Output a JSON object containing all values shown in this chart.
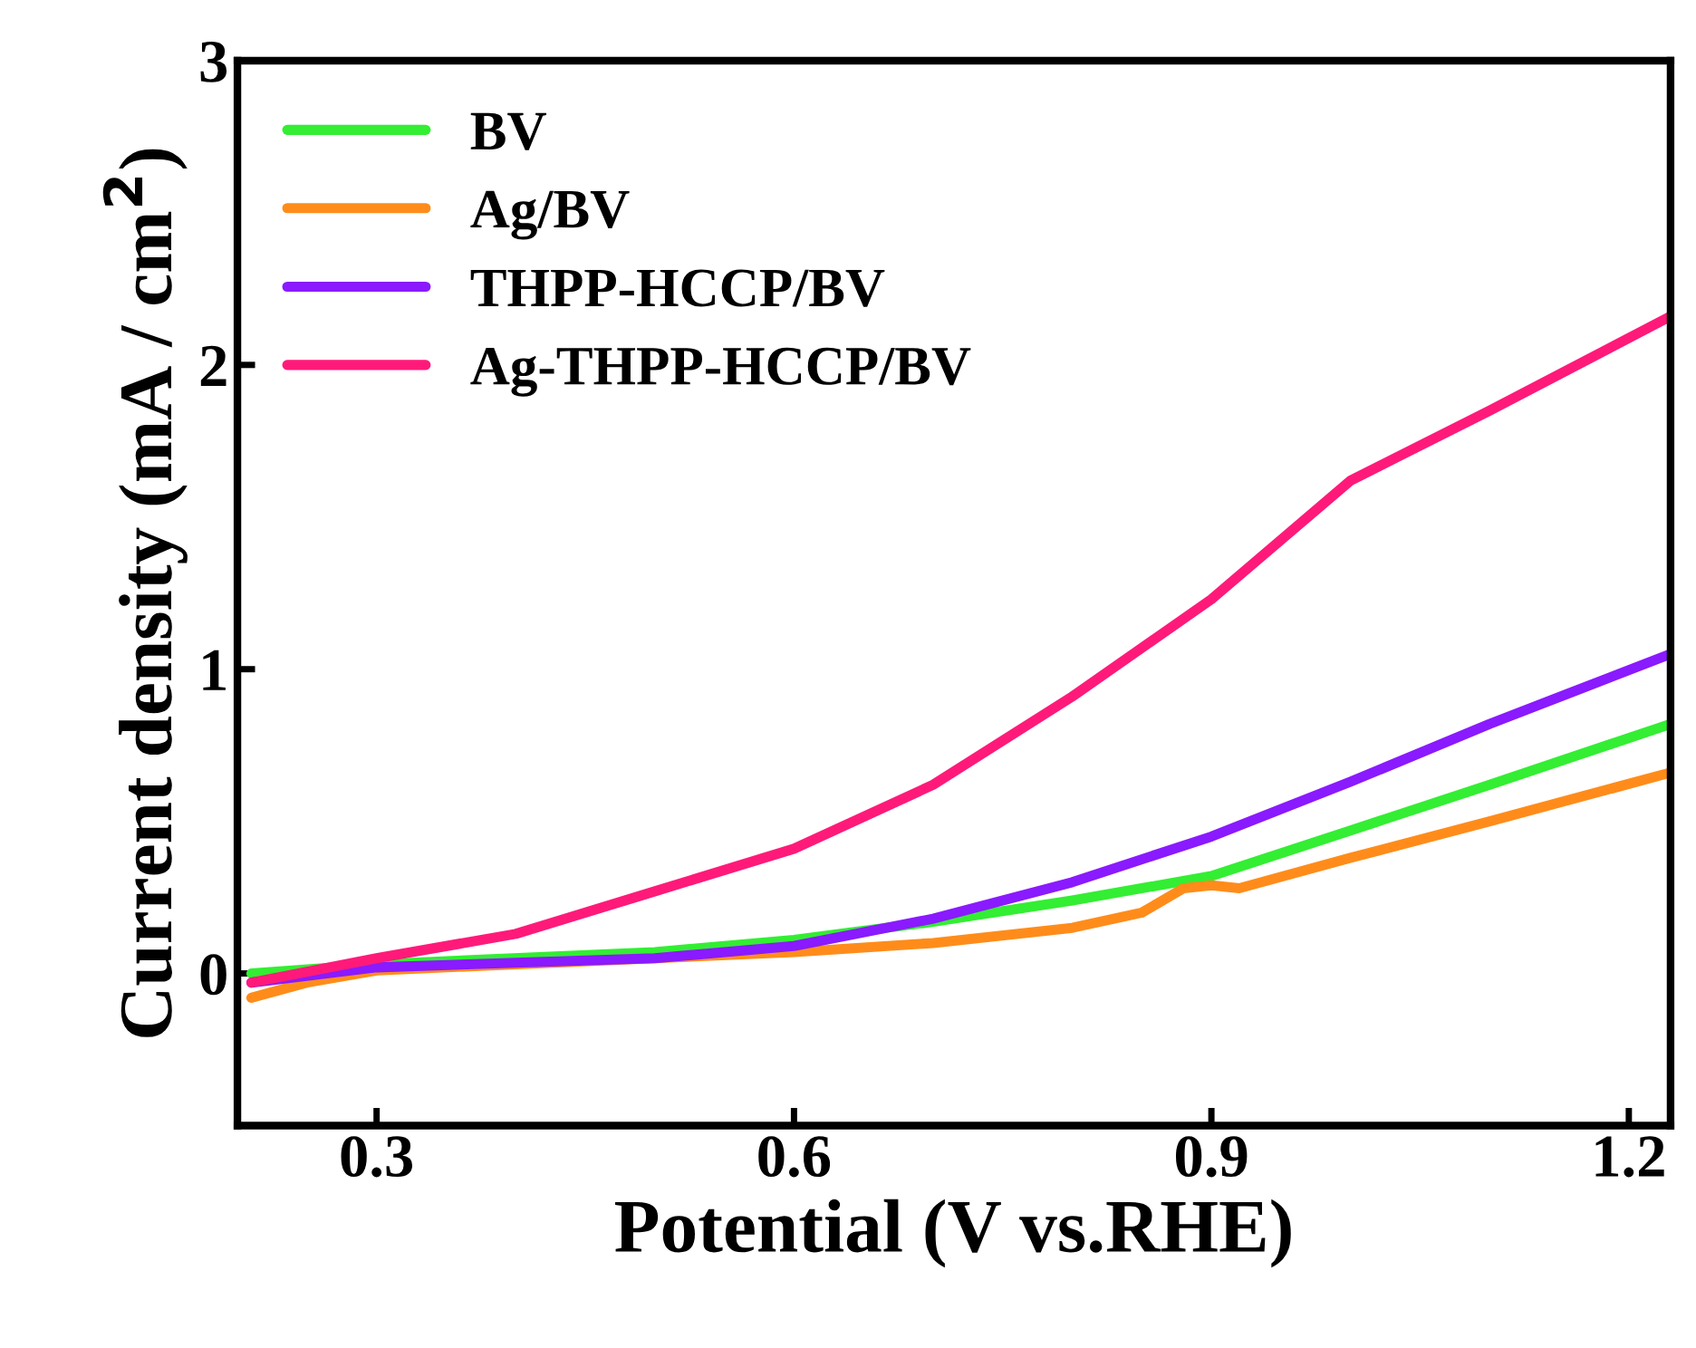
{
  "chart_data": {
    "type": "line",
    "xlabel": "Potential (V vs.RHE)",
    "ylabel": "Current density (mA / cm$^{2}$)",
    "xlim": [
      0.2,
      1.23
    ],
    "xticks": [
      0.3,
      0.6,
      0.9,
      1.2
    ],
    "ylim": [
      -0.5,
      3
    ],
    "yticks": [
      0,
      1,
      2,
      3
    ],
    "grid": false,
    "legend": "top left",
    "marker": "none",
    "line_style": "solid",
    "series": [
      {
        "name": "BV",
        "color": "#33ee33",
        "x": [
          0.21,
          0.3,
          0.5,
          0.6,
          0.7,
          0.8,
          0.9,
          1.0,
          1.1,
          1.23
        ],
        "values": [
          0.0,
          0.03,
          0.07,
          0.11,
          0.17,
          0.24,
          0.32,
          0.47,
          0.62,
          0.82
        ]
      },
      {
        "name": "Ag/BV",
        "color": "#ff8c1a",
        "x": [
          0.21,
          0.25,
          0.3,
          0.5,
          0.6,
          0.7,
          0.8,
          0.85,
          0.88,
          0.9,
          0.92,
          1.0,
          1.1,
          1.23
        ],
        "values": [
          -0.08,
          -0.03,
          0.01,
          0.05,
          0.07,
          0.1,
          0.15,
          0.2,
          0.28,
          0.29,
          0.28,
          0.38,
          0.5,
          0.66
        ]
      },
      {
        "name": "THPP-HCCP/BV",
        "color": "#8a1aff",
        "x": [
          0.21,
          0.3,
          0.5,
          0.6,
          0.7,
          0.8,
          0.9,
          1.0,
          1.1,
          1.23
        ],
        "values": [
          -0.03,
          0.02,
          0.05,
          0.09,
          0.18,
          0.3,
          0.45,
          0.63,
          0.82,
          1.05
        ]
      },
      {
        "name": "Ag-THPP-HCCP/BV",
        "color": "#ff1a7a",
        "x": [
          0.21,
          0.3,
          0.4,
          0.5,
          0.6,
          0.7,
          0.8,
          0.9,
          1.0,
          1.1,
          1.23
        ],
        "values": [
          -0.03,
          0.05,
          0.13,
          0.27,
          0.41,
          0.62,
          0.91,
          1.23,
          1.62,
          1.85,
          2.16
        ]
      }
    ]
  }
}
